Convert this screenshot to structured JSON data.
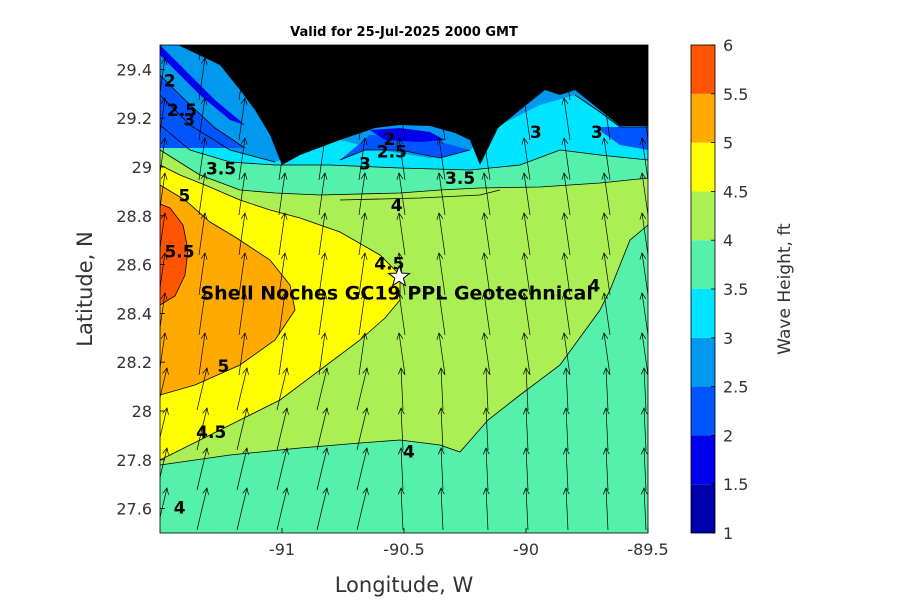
{
  "chart_data": {
    "type": "contour",
    "title": "Valid for 25-Jul-2025 2000 GMT",
    "xlabel": "Longitude, W",
    "ylabel": "Latitude, N",
    "xlim": [
      -91.5,
      -89.5
    ],
    "ylim": [
      27.5,
      29.5
    ],
    "x_ticks": [
      -91,
      -90.5,
      -90,
      -89.5
    ],
    "x_tick_labels": [
      "-91",
      "-90.5",
      "-90",
      "-89.5"
    ],
    "y_ticks": [
      27.6,
      27.8,
      28,
      28.2,
      28.4,
      28.6,
      28.8,
      29,
      29.2,
      29.4
    ],
    "y_tick_labels": [
      "27.6",
      "27.8",
      "28",
      "28.2",
      "28.4",
      "28.6",
      "28.8",
      "29",
      "29.2",
      "29.4"
    ],
    "colorbar": {
      "label": "Wave Height, ft",
      "range": [
        1,
        6
      ],
      "ticks": [
        1,
        1.5,
        2,
        2.5,
        3,
        3.5,
        4,
        4.5,
        5,
        5.5,
        6
      ],
      "tick_labels": [
        "1",
        "1.5",
        "2",
        "2.5",
        "3",
        "3.5",
        "4",
        "4.5",
        "5",
        "5.5",
        "6"
      ],
      "colors": [
        "#0000aa",
        "#0000ee",
        "#0055ff",
        "#0099ee",
        "#00e5ff",
        "#55f0aa",
        "#aaf055",
        "#ffff00",
        "#ffaa00",
        "#ff5500"
      ]
    },
    "contour_labels": [
      {
        "text": "2",
        "lon": -91.46,
        "lat": 29.35
      },
      {
        "text": "2.5",
        "lon": -91.41,
        "lat": 29.23
      },
      {
        "text": "3",
        "lon": -91.38,
        "lat": 29.19
      },
      {
        "text": "3.5",
        "lon": -91.25,
        "lat": 28.99
      },
      {
        "text": "5",
        "lon": -91.4,
        "lat": 28.88
      },
      {
        "text": "5.5",
        "lon": -91.42,
        "lat": 28.65
      },
      {
        "text": "5",
        "lon": -91.24,
        "lat": 28.18
      },
      {
        "text": "4.5",
        "lon": -91.29,
        "lat": 27.91
      },
      {
        "text": "4",
        "lon": -91.42,
        "lat": 27.6
      },
      {
        "text": "4",
        "lon": -90.53,
        "lat": 28.84
      },
      {
        "text": "4.5",
        "lon": -90.56,
        "lat": 28.6
      },
      {
        "text": "4",
        "lon": -90.48,
        "lat": 27.83
      },
      {
        "text": "3",
        "lon": -90.66,
        "lat": 29.01
      },
      {
        "text": "2.5",
        "lon": -90.55,
        "lat": 29.06
      },
      {
        "text": "2",
        "lon": -90.56,
        "lat": 29.11
      },
      {
        "text": "3.5",
        "lon": -90.27,
        "lat": 28.95
      },
      {
        "text": "3",
        "lon": -89.96,
        "lat": 29.14
      },
      {
        "text": "3",
        "lon": -89.71,
        "lat": 29.14
      },
      {
        "text": "4",
        "lon": -89.72,
        "lat": 28.51
      }
    ],
    "annotation": {
      "text": "Shell Noches   GC19 PPL   Geotechnical",
      "lon": -90.53,
      "lat": 28.48
    },
    "station": {
      "lon": -90.52,
      "lat": 28.55
    },
    "grid": false
  }
}
